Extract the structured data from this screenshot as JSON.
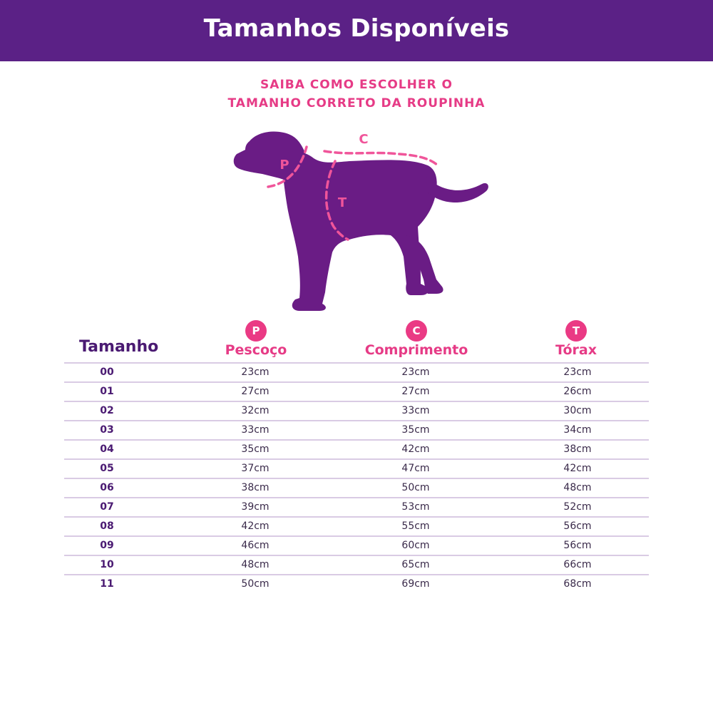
{
  "header": {
    "title": "Tamanhos Disponíveis"
  },
  "guide": {
    "line1": "SAIBA COMO ESCOLHER O",
    "line2": "TAMANHO CORRETO DA ROUPINHA",
    "markers": {
      "p": "P",
      "c": "C",
      "t": "T"
    }
  },
  "colors": {
    "header_bg": "#5b2186",
    "accent": "#e63b86",
    "dog": "#6a1c85"
  },
  "table": {
    "size_header": "Tamanho",
    "columns": [
      {
        "badge": "P",
        "label": "Pescoço"
      },
      {
        "badge": "C",
        "label": "Comprimento"
      },
      {
        "badge": "T",
        "label": "Tórax"
      }
    ],
    "rows": [
      {
        "size": "00",
        "p": "23cm",
        "c": "23cm",
        "t": "23cm"
      },
      {
        "size": "01",
        "p": "27cm",
        "c": "27cm",
        "t": "26cm"
      },
      {
        "size": "02",
        "p": "32cm",
        "c": "33cm",
        "t": "30cm"
      },
      {
        "size": "03",
        "p": "33cm",
        "c": "35cm",
        "t": "34cm"
      },
      {
        "size": "04",
        "p": "35cm",
        "c": "42cm",
        "t": "38cm"
      },
      {
        "size": "05",
        "p": "37cm",
        "c": "47cm",
        "t": "42cm"
      },
      {
        "size": "06",
        "p": "38cm",
        "c": "50cm",
        "t": "48cm"
      },
      {
        "size": "07",
        "p": "39cm",
        "c": "53cm",
        "t": "52cm"
      },
      {
        "size": "08",
        "p": "42cm",
        "c": "55cm",
        "t": "56cm"
      },
      {
        "size": "09",
        "p": "46cm",
        "c": "60cm",
        "t": "56cm"
      },
      {
        "size": "10",
        "p": "48cm",
        "c": "65cm",
        "t": "66cm"
      },
      {
        "size": "11",
        "p": "50cm",
        "c": "69cm",
        "t": "68cm"
      }
    ]
  }
}
